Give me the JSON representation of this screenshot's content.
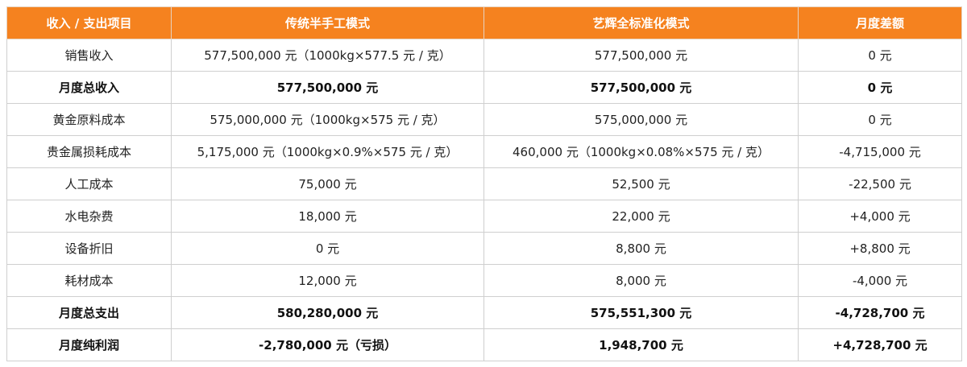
{
  "table": {
    "header": [
      "收入 / 支出项目",
      "传统半手工模式",
      "艺辉全标准化模式",
      "月度差额"
    ],
    "rows": [
      [
        "销售收入",
        "577,500,000 元（1000kg×577.5 元 / 克）",
        "577,500,000 元",
        "0 元"
      ],
      [
        "月度总收入",
        "577,500,000 元",
        "577,500,000 元",
        "0 元"
      ],
      [
        "黄金原料成本",
        "575,000,000 元（1000kg×575 元 / 克）",
        "575,000,000 元",
        "0 元"
      ],
      [
        "贵金属损耗成本",
        "5,175,000 元（1000kg×0.9%×575 元 / 克）",
        "460,000 元（1000kg×0.08%×575 元 / 克）",
        "-4,715,000 元"
      ],
      [
        "人工成本",
        "75,000 元",
        "52,500 元",
        "-22,500 元"
      ],
      [
        "水电杂费",
        "18,000 元",
        "22,000 元",
        "+4,000 元"
      ],
      [
        "设备折旧",
        "0 元",
        "8,800 元",
        "+8,800 元"
      ],
      [
        "耗材成本",
        "12,000 元",
        "8,000 元",
        "-4,000 元"
      ],
      [
        "月度总支出",
        "580,280,000 元",
        "575,551,300 元",
        "-4,728,700 元"
      ],
      [
        "月度纯利润",
        "-2,780,000 元（亏损）",
        "1,948,700 元",
        "+4,728,700 元"
      ]
    ]
  }
}
